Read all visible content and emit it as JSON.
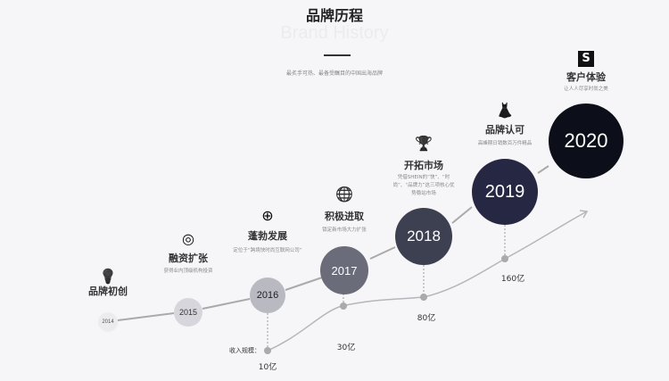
{
  "header": {
    "title": "品牌历程",
    "subtitle": "Brand History",
    "tagline": "最炙手可热、最备受瞩目的中国出海品牌"
  },
  "milestones": [
    {
      "year": "2014",
      "title": "品牌初创",
      "desc": "",
      "icon": "lightbulb-icon",
      "color": "#ececef",
      "text": "#555"
    },
    {
      "year": "2015",
      "title": "融资扩张",
      "desc": "获得业内顶级机构投资",
      "icon": "target-icon",
      "color": "#d6d6dc",
      "text": "#333"
    },
    {
      "year": "2016",
      "title": "蓬勃发展",
      "desc": "定位于“跨境快时尚互联网公司”",
      "icon": "globe-dollar-icon",
      "color": "#b9b9c2",
      "text": "#222"
    },
    {
      "year": "2017",
      "title": "积极进取",
      "desc": "锁定新市场大力扩张",
      "icon": "globe-icon",
      "color": "#6a6c7a",
      "text": "#fff"
    },
    {
      "year": "2018",
      "title": "开拓市场",
      "desc": "凭借SHEIN的“快”、“时尚”、“品牌力”这三项核心优势稳站市场",
      "icon": "trophy-icon",
      "color": "#3d4050",
      "text": "#fff"
    },
    {
      "year": "2019",
      "title": "品牌认可",
      "desc": "高峰期日销数百万件精品",
      "icon": "dress-icon",
      "color": "#262843",
      "text": "#fff"
    },
    {
      "year": "2020",
      "title": "客户体验",
      "desc": "让人人尽享时尚之美",
      "icon": "s-logo-icon",
      "color": "#0c0f1a",
      "text": "#fff"
    }
  ],
  "revenue": {
    "label": "收入规模：",
    "points": [
      {
        "year": "2016",
        "value": "10亿"
      },
      {
        "year": "2017",
        "value": "30亿"
      },
      {
        "year": "2018",
        "value": "80亿"
      },
      {
        "year": "2019",
        "value": "160亿"
      }
    ]
  }
}
